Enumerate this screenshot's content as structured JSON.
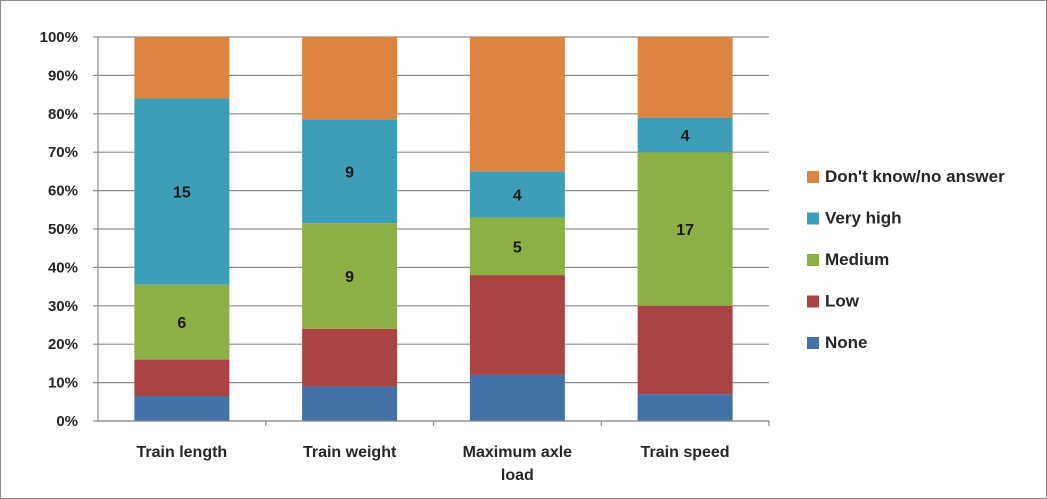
{
  "chart_data": {
    "type": "bar",
    "stacked": true,
    "normalized_100_percent": true,
    "categories": [
      [
        "Train length"
      ],
      [
        "Train weight"
      ],
      [
        "Maximum axle",
        "load"
      ],
      [
        "Train speed"
      ]
    ],
    "series": [
      {
        "name": "None",
        "color": "#4472a8",
        "values": [
          6.5,
          9,
          12,
          7
        ],
        "labels": [
          "",
          "",
          "",
          ""
        ]
      },
      {
        "name": "Low",
        "color": "#a94442",
        "values": [
          9.5,
          15,
          26,
          23
        ],
        "labels": [
          "",
          "",
          "",
          ""
        ]
      },
      {
        "name": "Medium",
        "color": "#8caf46",
        "values": [
          19.5,
          27.5,
          15,
          40
        ],
        "labels": [
          "6",
          "9",
          "5",
          "17"
        ]
      },
      {
        "name": "Very high",
        "color": "#3e9eb8",
        "values": [
          48.5,
          27,
          12,
          9
        ],
        "labels": [
          "15",
          "9",
          "4",
          "4"
        ]
      },
      {
        "name": "Don't know/no answer",
        "color": "#dd8440",
        "values": [
          16,
          21.5,
          35,
          21
        ],
        "labels": [
          "",
          "",
          "",
          ""
        ]
      }
    ],
    "ylim": [
      0,
      100
    ],
    "yticks": [
      "0%",
      "10%",
      "20%",
      "30%",
      "40%",
      "50%",
      "60%",
      "70%",
      "80%",
      "90%",
      "100%"
    ],
    "grid": true,
    "legend_position": "right",
    "legend_order": [
      "Don't know/no answer",
      "Very high",
      "Medium",
      "Low",
      "None"
    ]
  }
}
